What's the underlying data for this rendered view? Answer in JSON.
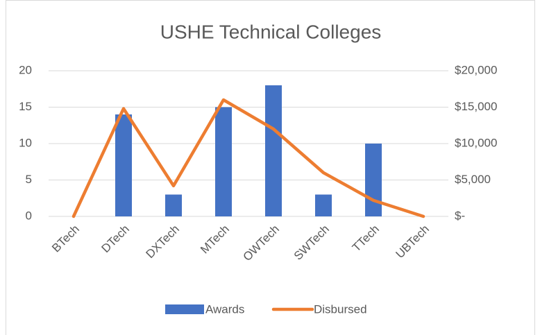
{
  "chart_data": {
    "type": "combo",
    "title": "USHE Technical Colleges",
    "categories": [
      "BTech",
      "DTech",
      "DXTech",
      "MTech",
      "OWTech",
      "SWTech",
      "TTech",
      "UBTech"
    ],
    "series": [
      {
        "name": "Awards",
        "type": "bar",
        "color": "#4472c4",
        "values": [
          0,
          14,
          3,
          15,
          18,
          3,
          10,
          0
        ]
      },
      {
        "name": "Disbursed",
        "type": "line",
        "axis": "y2",
        "color": "#ed7d31",
        "values": [
          0,
          14800,
          4200,
          16000,
          12000,
          6000,
          2200,
          0
        ]
      }
    ],
    "ylim": [
      0,
      20
    ],
    "yticks": [
      0,
      5,
      10,
      15,
      20
    ],
    "y2lim": [
      0,
      20000
    ],
    "y2ticks": [
      {
        "value": 0,
        "label": "$-"
      },
      {
        "value": 5000,
        "label": "$5,000"
      },
      {
        "value": 10000,
        "label": "$10,000"
      },
      {
        "value": 15000,
        "label": "$15,000"
      },
      {
        "value": 20000,
        "label": "$20,000"
      }
    ],
    "grid": true,
    "legend": "bottom"
  }
}
